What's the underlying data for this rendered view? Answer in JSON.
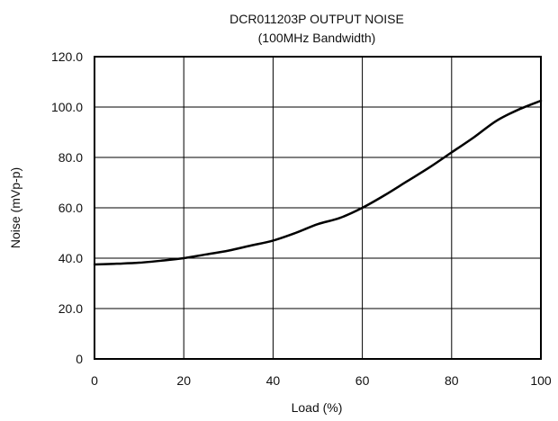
{
  "chart_data": {
    "type": "line",
    "title": "DCR011203P OUTPUT NOISE",
    "subtitle": "(100MHz Bandwidth)",
    "xlabel": "Load (%)",
    "ylabel": "Noise (mVp-p)",
    "xlim": [
      0,
      100
    ],
    "ylim": [
      0,
      120
    ],
    "grid": true,
    "x_ticks": [
      0,
      20,
      40,
      60,
      80,
      100
    ],
    "x_tick_labels": [
      "0",
      "20",
      "40",
      "60",
      "80",
      "100"
    ],
    "y_ticks": [
      0,
      20,
      40,
      60,
      80,
      100,
      120
    ],
    "y_tick_labels": [
      "0",
      "20.0",
      "40.0",
      "60.0",
      "80.0",
      "100.0",
      "120.0"
    ],
    "series": [
      {
        "x": [
          0,
          5,
          10,
          15,
          20,
          25,
          30,
          35,
          40,
          45,
          50,
          55,
          60,
          65,
          70,
          75,
          80,
          85,
          90,
          95,
          100
        ],
        "y": [
          37.5,
          37.8,
          38.2,
          39.0,
          40.0,
          41.5,
          43.0,
          45.0,
          47.0,
          50.0,
          53.5,
          56.0,
          60.0,
          65.0,
          70.5,
          76.0,
          82.0,
          88.0,
          94.5,
          99.0,
          102.5
        ],
        "color": "#000000"
      }
    ]
  }
}
